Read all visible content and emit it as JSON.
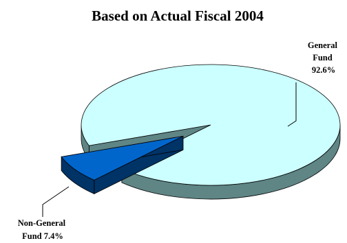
{
  "chart_data": {
    "type": "pie",
    "title": "Based on Actual Fiscal 2004",
    "slices": [
      {
        "label_lines": [
          "General",
          "Fund",
          "92.6%"
        ],
        "value": 92.6,
        "top_color": "#ccffff",
        "side_color": "#5f8585",
        "exploded": false
      },
      {
        "label_lines": [
          "Non-General",
          "Fund 7.4%"
        ],
        "value": 7.4,
        "top_color": "#0066cc",
        "side_color": "#003366",
        "exploded": true
      }
    ],
    "legend": "none",
    "style": "3d-exploded"
  }
}
